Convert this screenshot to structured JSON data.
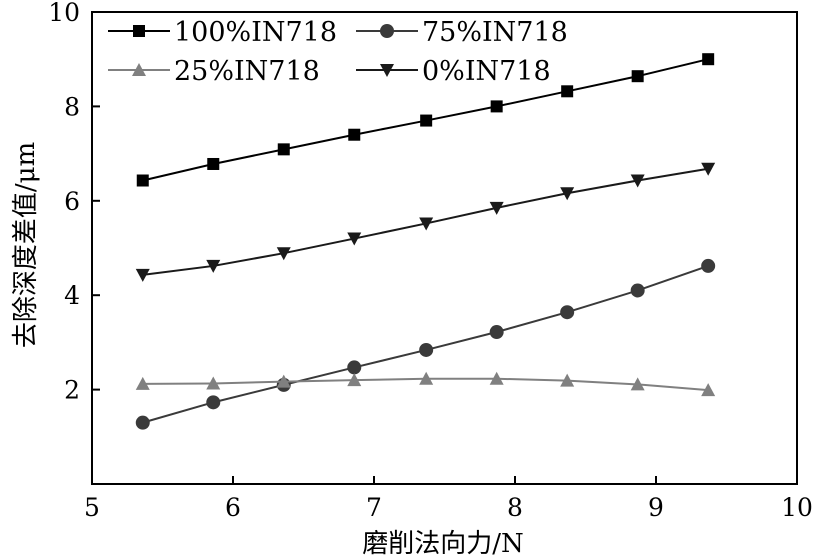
{
  "chart_data": {
    "type": "line",
    "title": "",
    "xlabel": "磨削法向力/N",
    "ylabel": "去除深度差值/μm",
    "xlim": [
      5,
      10
    ],
    "ylim": [
      0,
      10
    ],
    "xticks": [
      5,
      6,
      7,
      8,
      9,
      10
    ],
    "yticks": [
      2,
      4,
      6,
      8,
      10
    ],
    "grid": false,
    "legend_position": "top-left",
    "x": [
      5.36,
      5.86,
      6.36,
      6.86,
      7.37,
      7.87,
      8.37,
      8.87,
      9.37
    ],
    "series": [
      {
        "name": "100%IN718",
        "marker": "square",
        "color": "#000000",
        "values": [
          6.43,
          6.78,
          7.09,
          7.4,
          7.7,
          8.0,
          8.32,
          8.64,
          9.0
        ]
      },
      {
        "name": "75%IN718",
        "marker": "circle",
        "color": "#3a3a3a",
        "values": [
          1.3,
          1.73,
          2.1,
          2.47,
          2.84,
          3.22,
          3.64,
          4.1,
          4.62
        ]
      },
      {
        "name": "25%IN718",
        "marker": "triangle-up",
        "color": "#808080",
        "values": [
          2.12,
          2.13,
          2.17,
          2.2,
          2.23,
          2.23,
          2.19,
          2.11,
          1.99
        ]
      },
      {
        "name": "0%IN718",
        "marker": "triangle-down",
        "color": "#1a1a1a",
        "values": [
          4.43,
          4.62,
          4.89,
          5.2,
          5.52,
          5.85,
          6.16,
          6.43,
          6.68
        ]
      }
    ]
  }
}
